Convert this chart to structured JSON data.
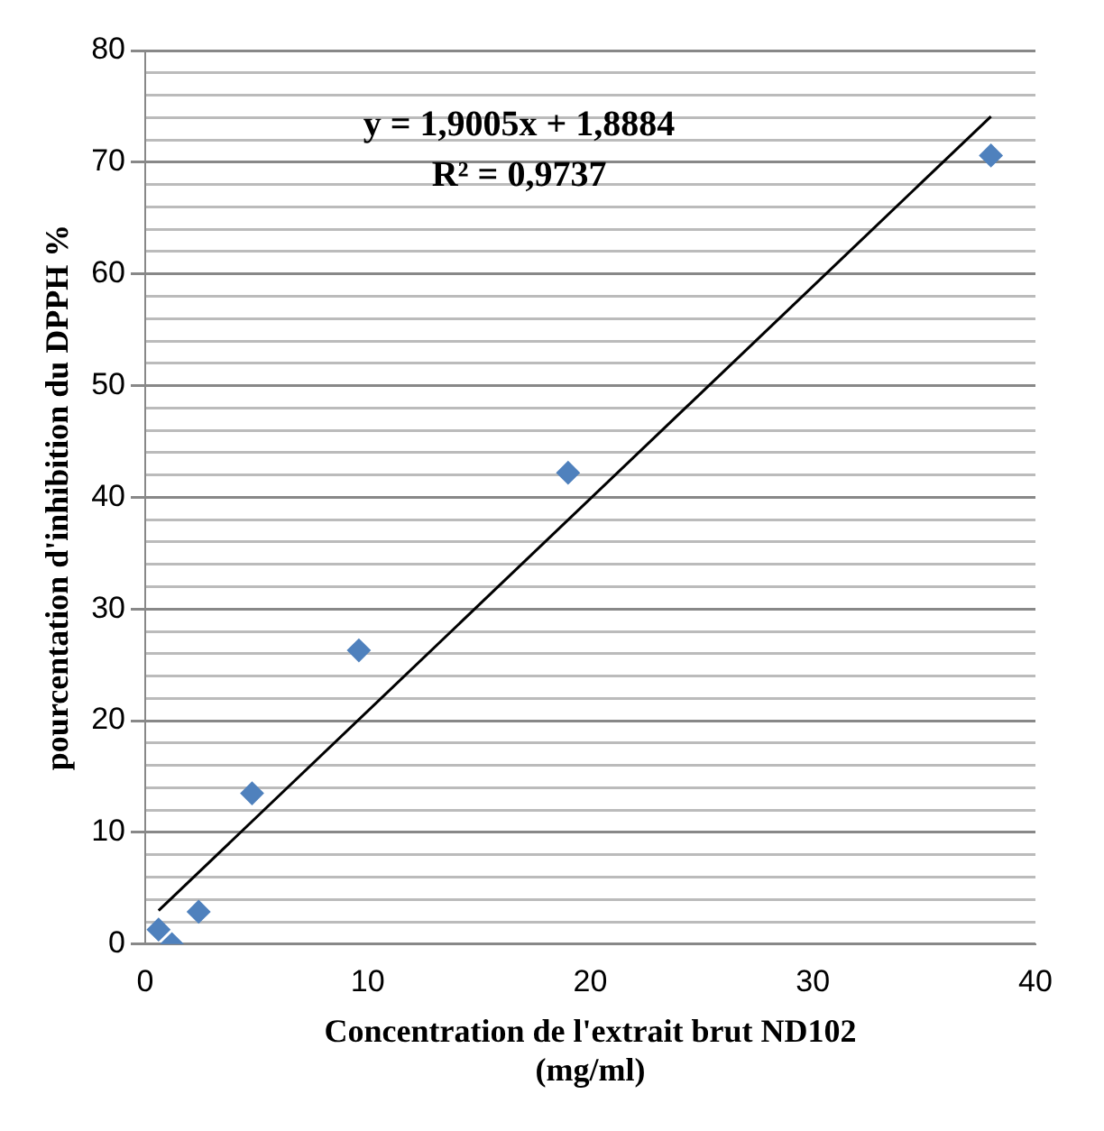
{
  "chart_data": {
    "type": "scatter",
    "xlabel": "Concentration de l'extrait brut ND102\n(mg/ml)",
    "ylabel": "pourcentation d'inhibition du DPPH %",
    "annotations": [
      "y = 1,9005x + 1,8884",
      "R² = 0,9737"
    ],
    "series": [
      {
        "type": "scatter",
        "color": "#4f81bd",
        "x": [
          0.6,
          1.2,
          2.4,
          4.8,
          9.6,
          19,
          38
        ],
        "values": [
          1.3,
          0,
          2.9,
          13.5,
          26.3,
          42.2,
          70.6
        ]
      },
      {
        "type": "line",
        "color": "#000000",
        "marker": "none",
        "x": [
          0.6,
          38
        ],
        "values": [
          3.0,
          74.1
        ]
      }
    ],
    "marker": "diamond",
    "grid": "y",
    "legend": false,
    "xlim": [
      0,
      40
    ],
    "xticks": [
      0,
      10,
      20,
      30,
      40
    ],
    "ylim": [
      0,
      80
    ],
    "yticks": [
      0,
      {
        "value": 2,
        "label": null
      },
      {
        "value": 4,
        "label": null
      },
      {
        "value": 6,
        "label": null
      },
      {
        "value": 8,
        "label": null
      },
      10,
      {
        "value": 12,
        "label": null
      },
      {
        "value": 14,
        "label": null
      },
      {
        "value": 16,
        "label": null
      },
      {
        "value": 18,
        "label": null
      },
      20,
      {
        "value": 22,
        "label": null
      },
      {
        "value": 24,
        "label": null
      },
      {
        "value": 26,
        "label": null
      },
      {
        "value": 28,
        "label": null
      },
      30,
      {
        "value": 32,
        "label": null
      },
      {
        "value": 34,
        "label": null
      },
      {
        "value": 36,
        "label": null
      },
      {
        "value": 38,
        "label": null
      },
      40,
      {
        "value": 42,
        "label": null
      },
      {
        "value": 44,
        "label": null
      },
      {
        "value": 46,
        "label": null
      },
      {
        "value": 48,
        "label": null
      },
      50,
      {
        "value": 52,
        "label": null
      },
      {
        "value": 54,
        "label": null
      },
      {
        "value": 56,
        "label": null
      },
      {
        "value": 58,
        "label": null
      },
      60,
      {
        "value": 62,
        "label": null
      },
      {
        "value": 64,
        "label": null
      },
      {
        "value": 66,
        "label": null
      },
      {
        "value": 68,
        "label": null
      },
      70,
      {
        "value": 72,
        "label": null
      },
      {
        "value": 74,
        "label": null
      },
      {
        "value": 76,
        "label": null
      },
      {
        "value": 78,
        "label": null
      },
      80
    ]
  }
}
